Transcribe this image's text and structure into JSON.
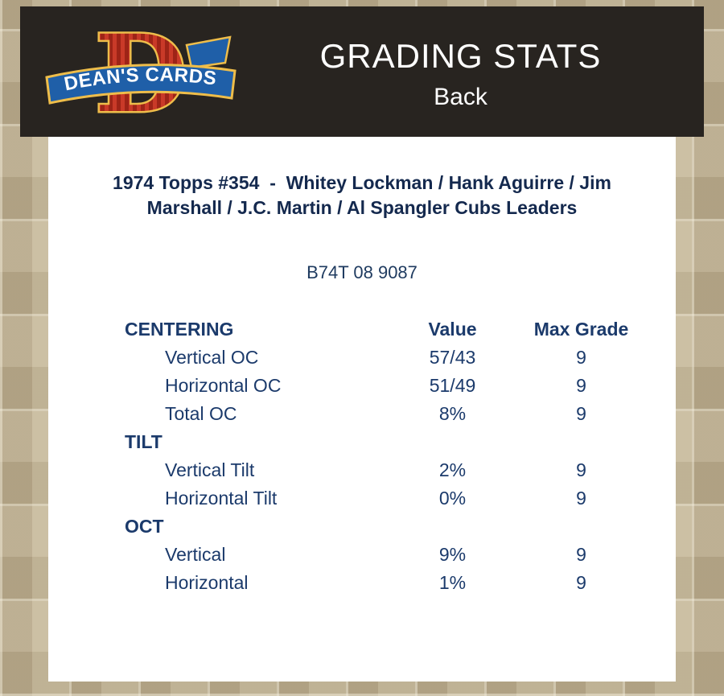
{
  "header": {
    "title": "GRADING STATS",
    "subtitle": "Back",
    "logo": {
      "letter": "D",
      "brand": "DEAN'S CARDS"
    }
  },
  "card": {
    "title": "1974 Topps #354  -  Whitey Lockman / Hank Aguirre / Jim Marshall / J.C. Martin / Al Spangler Cubs Leaders",
    "serial": "B74T 08 9087"
  },
  "table": {
    "columns": [
      "CENTERING",
      "Value",
      "Max Grade"
    ],
    "sections": [
      {
        "header": null,
        "rows": [
          {
            "label": "Vertical OC",
            "value": "57/43",
            "max_grade": "9"
          },
          {
            "label": "Horizontal OC",
            "value": "51/49",
            "max_grade": "9"
          },
          {
            "label": "Total OC",
            "value": "8%",
            "max_grade": "9"
          }
        ]
      },
      {
        "header": "TILT",
        "rows": [
          {
            "label": "Vertical Tilt",
            "value": "2%",
            "max_grade": "9"
          },
          {
            "label": "Horizontal Tilt",
            "value": "0%",
            "max_grade": "9"
          }
        ]
      },
      {
        "header": "OCT",
        "rows": [
          {
            "label": "Vertical",
            "value": "9%",
            "max_grade": "9"
          },
          {
            "label": "Horizontal",
            "value": "1%",
            "max_grade": "9"
          }
        ]
      }
    ]
  },
  "colors": {
    "header_bar_bg": "#282420",
    "page_bg_tan": "#c6bb9f",
    "panel_bg": "#ffffff",
    "title_navy": "#14294e",
    "table_navy": "#1b3a6b",
    "logo_red": "#c93a28",
    "logo_red_dark": "#9e2417",
    "logo_blue": "#1f5fa8",
    "logo_gold": "#eebd4a",
    "header_text": "#ffffff"
  }
}
